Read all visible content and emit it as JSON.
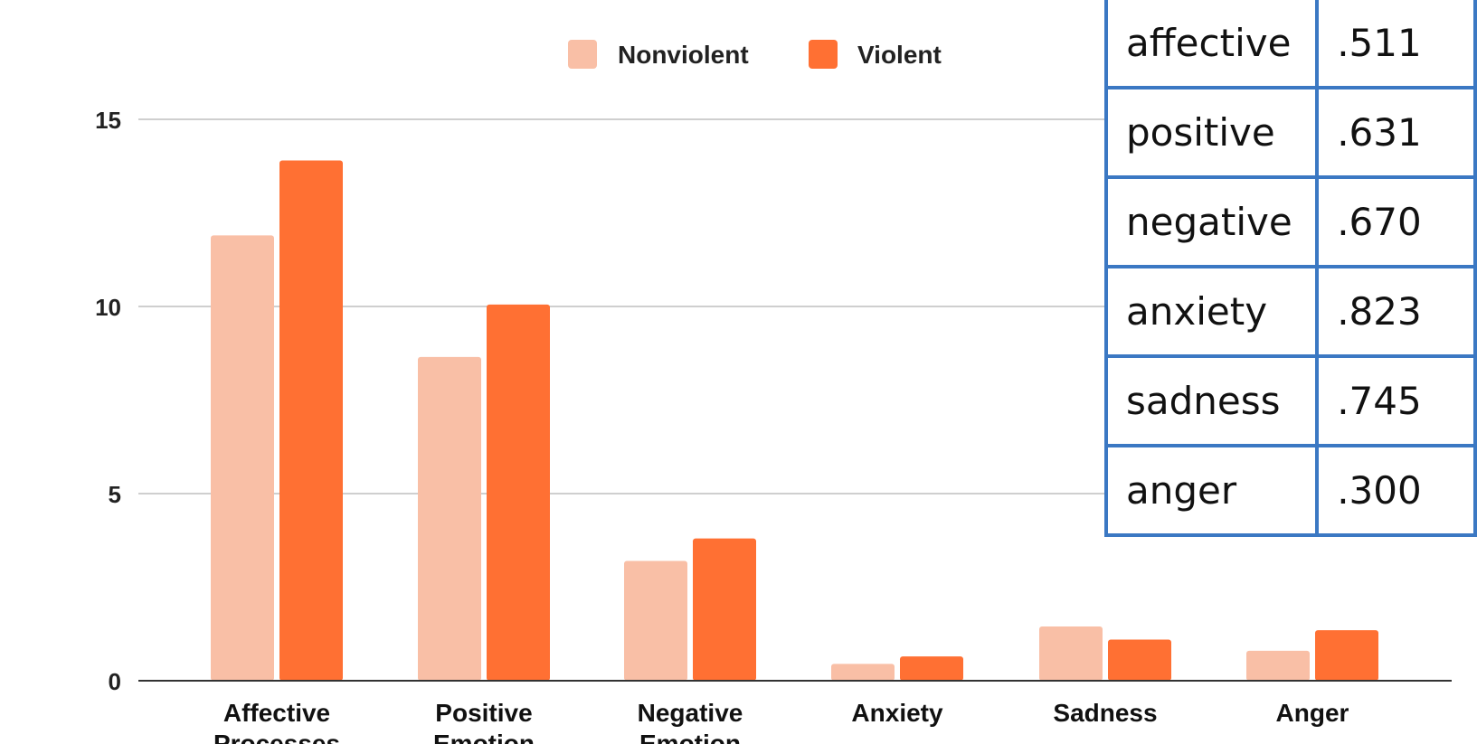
{
  "chart_data": {
    "type": "bar",
    "categories": [
      "Affective Processes",
      "Positive Emotion",
      "Negative Emotion",
      "Anxiety",
      "Sadness",
      "Anger"
    ],
    "series": [
      {
        "name": "Nonviolent",
        "color": "#f9bfa6",
        "values": [
          11.9,
          8.65,
          3.2,
          0.45,
          1.45,
          0.8
        ]
      },
      {
        "name": "Violent",
        "color": "#ff7033",
        "values": [
          13.9,
          10.05,
          3.8,
          0.65,
          1.1,
          1.35
        ]
      }
    ],
    "yticks": [
      0,
      5,
      10,
      15
    ],
    "ylim": [
      0,
      16
    ],
    "grid": true,
    "legend": "top-center"
  },
  "pvalue_table": {
    "rows": [
      {
        "label": "affective",
        "value": ".511"
      },
      {
        "label": "positive",
        "value": ".631"
      },
      {
        "label": "negative",
        "value": ".670"
      },
      {
        "label": "anxiety",
        "value": ".823"
      },
      {
        "label": "sadness",
        "value": ".745"
      },
      {
        "label": "anger",
        "value": ".300"
      }
    ]
  }
}
